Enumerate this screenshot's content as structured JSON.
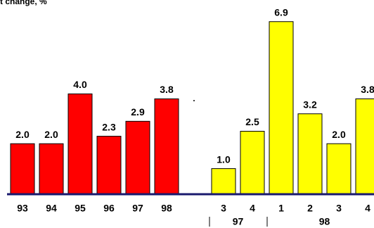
{
  "chart_data": [
    {
      "type": "bar",
      "title": "t change, %",
      "categories": [
        "93",
        "94",
        "95",
        "96",
        "97",
        "98"
      ],
      "values": [
        2.0,
        2.0,
        4.0,
        2.3,
        2.9,
        3.8
      ],
      "value_labels": [
        "2.0",
        "2.0",
        "4.0",
        "2.3",
        "2.9",
        "3.8"
      ],
      "color": "#ff0000"
    },
    {
      "type": "bar",
      "categories": [
        "3",
        "4",
        "1",
        "2",
        "3",
        "4"
      ],
      "values": [
        1.0,
        2.5,
        6.9,
        3.2,
        2.0,
        3.8
      ],
      "value_labels": [
        "1.0",
        "2.5",
        "6.9",
        "3.2",
        "2.0",
        "3.8"
      ],
      "groups": [
        "97",
        "98"
      ],
      "color": "#ffff00"
    }
  ]
}
